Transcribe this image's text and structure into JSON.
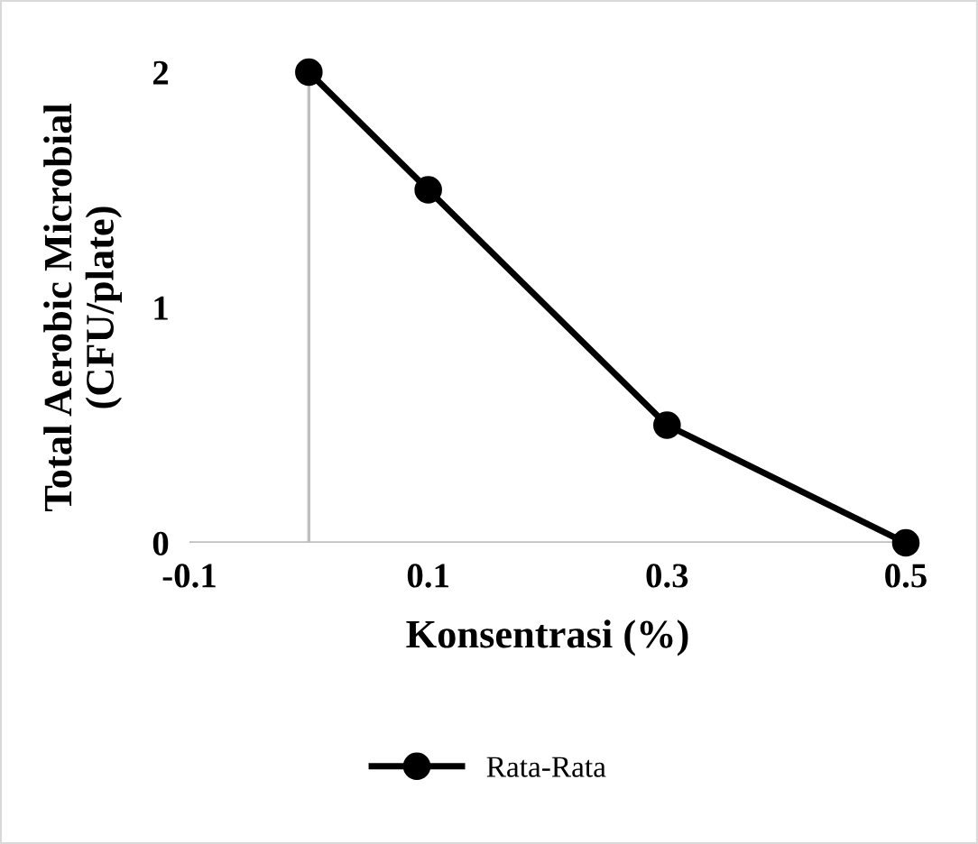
{
  "chart_data": {
    "type": "line",
    "xlabel": "Konsentrasi (%)",
    "ylabel": "Total Aerobic Microbial\n(CFU/plate)",
    "x": [
      0,
      0.1,
      0.3,
      0.5
    ],
    "series": [
      {
        "name": "Rata-Rata",
        "color": "#000000",
        "values": [
          2,
          1.5,
          0.5,
          0
        ]
      }
    ],
    "xlim": [
      -0.1,
      0.5
    ],
    "xticks": [
      -0.1,
      0.1,
      0.3,
      0.5
    ],
    "ylim": [
      0,
      2
    ],
    "yticks": [
      0,
      1,
      2
    ],
    "marker": "circle",
    "line_style": "solid",
    "grid": false,
    "legend": "bottom"
  }
}
